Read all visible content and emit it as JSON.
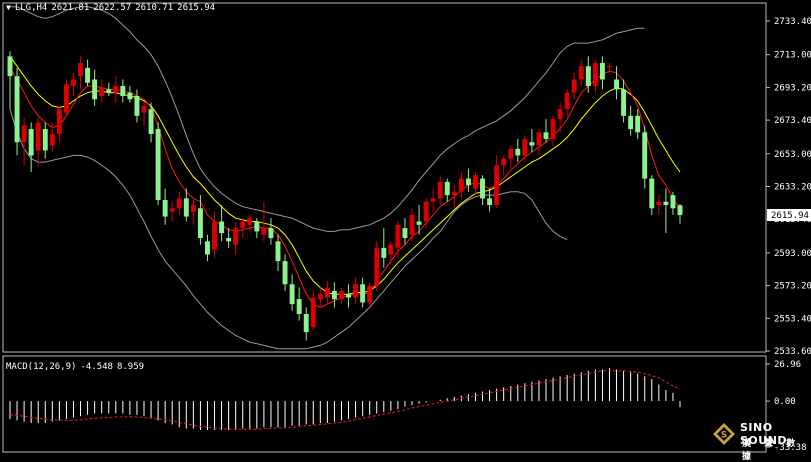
{
  "header": {
    "symbol": "LLG,H4",
    "open": "2621.81",
    "high": "2622.57",
    "low": "2610.71",
    "close": "2615.94"
  },
  "macd_header": {
    "label": "MACD(12,26,9)",
    "main": "-4.548",
    "signal": "8.959"
  },
  "logo": {
    "name": "SINO SOUND",
    "sub": "漢 聲 數 據"
  },
  "colors": {
    "bull": "#d80000",
    "bear": "#8ef28e",
    "ma_fast": "#ff1a1a",
    "ma_slow": "#ffff00",
    "bands": "#9a9a9a",
    "signal": "#e02020",
    "hist": "#ffffff",
    "frame": "#bbbbbb"
  },
  "chart_data": [
    {
      "type": "candlestick",
      "title": "LLG,H4",
      "price_ticks": [
        "2733.40",
        "2713.00",
        "2693.20",
        "2673.40",
        "2653.00",
        "2633.20",
        "2613.40",
        "2593.00",
        "2573.20",
        "2553.40",
        "2533.60"
      ],
      "current_price_label": "2615.94",
      "ylim": [
        2533.6,
        2733.4
      ],
      "candles": [
        [
          2712,
          2715,
          2680,
          2700
        ],
        [
          2700,
          2705,
          2652,
          2660
        ],
        [
          2660,
          2675,
          2646,
          2670
        ],
        [
          2668,
          2672,
          2642,
          2652
        ],
        [
          2655,
          2675,
          2645,
          2672
        ],
        [
          2668,
          2672,
          2650,
          2655
        ],
        [
          2658,
          2672,
          2654,
          2665
        ],
        [
          2665,
          2682,
          2660,
          2680
        ],
        [
          2678,
          2698,
          2676,
          2695
        ],
        [
          2694,
          2702,
          2688,
          2698
        ],
        [
          2700,
          2712,
          2692,
          2708
        ],
        [
          2705,
          2710,
          2694,
          2696
        ],
        [
          2698,
          2704,
          2682,
          2686
        ],
        [
          2688,
          2698,
          2684,
          2693
        ],
        [
          2692,
          2696,
          2688,
          2690
        ],
        [
          2690,
          2700,
          2684,
          2694
        ],
        [
          2694,
          2698,
          2684,
          2688
        ],
        [
          2690,
          2694,
          2684,
          2686
        ],
        [
          2688,
          2692,
          2672,
          2676
        ],
        [
          2678,
          2684,
          2670,
          2682
        ],
        [
          2680,
          2684,
          2660,
          2665
        ],
        [
          2668,
          2672,
          2622,
          2625
        ],
        [
          2625,
          2632,
          2610,
          2615
        ],
        [
          2618,
          2624,
          2612,
          2620
        ],
        [
          2620,
          2630,
          2616,
          2626
        ],
        [
          2626,
          2632,
          2612,
          2615
        ],
        [
          2618,
          2625,
          2610,
          2622
        ],
        [
          2620,
          2628,
          2598,
          2602
        ],
        [
          2600,
          2604,
          2588,
          2592
        ],
        [
          2595,
          2618,
          2590,
          2612
        ],
        [
          2612,
          2622,
          2600,
          2605
        ],
        [
          2602,
          2608,
          2596,
          2600
        ],
        [
          2598,
          2612,
          2592,
          2608
        ],
        [
          2608,
          2614,
          2602,
          2612
        ],
        [
          2610,
          2616,
          2606,
          2614
        ],
        [
          2612,
          2614,
          2602,
          2606
        ],
        [
          2604,
          2624,
          2600,
          2608
        ],
        [
          2608,
          2614,
          2598,
          2602
        ],
        [
          2600,
          2604,
          2582,
          2588
        ],
        [
          2588,
          2592,
          2570,
          2574
        ],
        [
          2574,
          2580,
          2558,
          2562
        ],
        [
          2565,
          2572,
          2552,
          2556
        ],
        [
          2556,
          2560,
          2540,
          2545
        ],
        [
          2548,
          2570,
          2546,
          2566
        ],
        [
          2565,
          2572,
          2560,
          2568
        ],
        [
          2566,
          2576,
          2562,
          2572
        ],
        [
          2570,
          2575,
          2560,
          2565
        ],
        [
          2565,
          2572,
          2562,
          2570
        ],
        [
          2568,
          2574,
          2560,
          2566
        ],
        [
          2566,
          2578,
          2562,
          2574
        ],
        [
          2574,
          2578,
          2560,
          2563
        ],
        [
          2563,
          2575,
          2560,
          2573
        ],
        [
          2573,
          2600,
          2570,
          2596
        ],
        [
          2596,
          2608,
          2584,
          2590
        ],
        [
          2592,
          2600,
          2586,
          2598
        ],
        [
          2596,
          2612,
          2590,
          2610
        ],
        [
          2608,
          2614,
          2598,
          2602
        ],
        [
          2604,
          2620,
          2600,
          2616
        ],
        [
          2612,
          2622,
          2604,
          2610
        ],
        [
          2612,
          2626,
          2608,
          2624
        ],
        [
          2624,
          2632,
          2618,
          2626
        ],
        [
          2626,
          2640,
          2622,
          2636
        ],
        [
          2636,
          2638,
          2624,
          2628
        ],
        [
          2628,
          2634,
          2620,
          2630
        ],
        [
          2630,
          2642,
          2626,
          2638
        ],
        [
          2638,
          2644,
          2630,
          2634
        ],
        [
          2632,
          2642,
          2628,
          2640
        ],
        [
          2638,
          2640,
          2622,
          2626
        ],
        [
          2626,
          2632,
          2618,
          2622
        ],
        [
          2622,
          2652,
          2620,
          2646
        ],
        [
          2646,
          2652,
          2640,
          2650
        ],
        [
          2650,
          2658,
          2644,
          2656
        ],
        [
          2656,
          2662,
          2648,
          2652
        ],
        [
          2652,
          2664,
          2648,
          2662
        ],
        [
          2660,
          2668,
          2654,
          2658
        ],
        [
          2658,
          2668,
          2652,
          2666
        ],
        [
          2666,
          2674,
          2660,
          2662
        ],
        [
          2662,
          2676,
          2658,
          2674
        ],
        [
          2674,
          2684,
          2666,
          2680
        ],
        [
          2680,
          2692,
          2676,
          2690
        ],
        [
          2690,
          2702,
          2686,
          2698
        ],
        [
          2698,
          2710,
          2694,
          2706
        ],
        [
          2706,
          2712,
          2690,
          2694
        ],
        [
          2694,
          2710,
          2690,
          2708
        ],
        [
          2708,
          2712,
          2692,
          2698
        ],
        [
          2706,
          2708,
          2702,
          2706
        ],
        [
          2698,
          2706,
          2686,
          2692
        ],
        [
          2692,
          2698,
          2672,
          2676
        ],
        [
          2676,
          2682,
          2664,
          2668
        ],
        [
          2676,
          2680,
          2662,
          2666
        ],
        [
          2666,
          2670,
          2632,
          2638
        ],
        [
          2638,
          2640,
          2616,
          2620
        ],
        [
          2622,
          2628,
          2616,
          2624
        ],
        [
          2624,
          2632,
          2605,
          2622
        ],
        [
          2628,
          2630,
          2616,
          2620
        ],
        [
          2621.81,
          2622.57,
          2610.71,
          2615.94
        ]
      ],
      "ma_fast": [
        2705,
        2698,
        2690,
        2682,
        2676,
        2672,
        2669,
        2670,
        2676,
        2683,
        2690,
        2694,
        2694,
        2693,
        2692,
        2692,
        2691,
        2690,
        2688,
        2686,
        2681,
        2670,
        2656,
        2644,
        2636,
        2630,
        2626,
        2624,
        2616,
        2612,
        2610,
        2607,
        2606,
        2607,
        2608,
        2609,
        2608,
        2608,
        2604,
        2597,
        2588,
        2578,
        2568,
        2562,
        2560,
        2562,
        2564,
        2566,
        2567,
        2568,
        2568,
        2569,
        2576,
        2582,
        2588,
        2594,
        2598,
        2603,
        2606,
        2611,
        2616,
        2621,
        2624,
        2627,
        2631,
        2634,
        2636,
        2634,
        2632,
        2634,
        2638,
        2643,
        2647,
        2651,
        2654,
        2657,
        2660,
        2664,
        2668,
        2674,
        2682,
        2690,
        2694,
        2698,
        2701,
        2703,
        2702,
        2697,
        2690,
        2682,
        2668,
        2652,
        2640,
        2634,
        2626,
        2620
      ],
      "ma_slow": [
        2712,
        2706,
        2700,
        2694,
        2689,
        2685,
        2682,
        2681,
        2682,
        2685,
        2688,
        2690,
        2691,
        2691,
        2690,
        2690,
        2689,
        2688,
        2687,
        2685,
        2682,
        2676,
        2668,
        2660,
        2652,
        2645,
        2639,
        2635,
        2630,
        2625,
        2621,
        2617,
        2614,
        2613,
        2612,
        2612,
        2611,
        2610,
        2608,
        2604,
        2598,
        2590,
        2582,
        2576,
        2572,
        2569,
        2568,
        2568,
        2568,
        2569,
        2569,
        2570,
        2573,
        2577,
        2582,
        2587,
        2591,
        2595,
        2599,
        2603,
        2607,
        2611,
        2615,
        2619,
        2623,
        2626,
        2629,
        2630,
        2631,
        2633,
        2636,
        2639,
        2642,
        2645,
        2648,
        2650,
        2653,
        2656,
        2659,
        2663,
        2668,
        2674,
        2679,
        2684,
        2688,
        2691,
        2693,
        2692,
        2689,
        2685,
        2678,
        2670,
        2662,
        2655,
        2648,
        2642
      ],
      "band_upper": [
        2742,
        2742,
        2740,
        2738,
        2736,
        2735,
        2736,
        2738,
        2740,
        2741,
        2742,
        2742,
        2741,
        2740,
        2738,
        2735,
        2731,
        2727,
        2722,
        2718,
        2713,
        2706,
        2697,
        2687,
        2676,
        2664,
        2653,
        2644,
        2638,
        2633,
        2629,
        2626,
        2623,
        2621,
        2620,
        2619,
        2618,
        2617,
        2616,
        2615,
        2614,
        2612,
        2610,
        2608,
        2607,
        2606,
        2606,
        2607,
        2607,
        2608,
        2609,
        2610,
        2612,
        2614,
        2617,
        2621,
        2626,
        2631,
        2637,
        2642,
        2647,
        2652,
        2656,
        2659,
        2662,
        2664,
        2667,
        2669,
        2671,
        2673,
        2676,
        2679,
        2683,
        2687,
        2692,
        2697,
        2702,
        2708,
        2714,
        2718,
        2720,
        2720,
        2720,
        2721,
        2722,
        2724,
        2726,
        2727,
        2728,
        2729,
        2729
      ],
      "band_lower": [
        2680,
        2666,
        2656,
        2650,
        2648,
        2648,
        2649,
        2650,
        2651,
        2652,
        2652,
        2651,
        2649,
        2646,
        2643,
        2639,
        2634,
        2628,
        2620,
        2612,
        2603,
        2595,
        2588,
        2583,
        2578,
        2573,
        2567,
        2562,
        2557,
        2553,
        2549,
        2546,
        2543,
        2541,
        2539,
        2538,
        2537,
        2536,
        2535,
        2535,
        2535,
        2535,
        2535,
        2536,
        2537,
        2539,
        2542,
        2545,
        2548,
        2552,
        2556,
        2560,
        2565,
        2570,
        2575,
        2580,
        2585,
        2589,
        2593,
        2597,
        2602,
        2606,
        2612,
        2618,
        2622,
        2625,
        2627,
        2628,
        2628,
        2628,
        2629,
        2630,
        2630,
        2629,
        2625,
        2618,
        2611,
        2606,
        2603,
        2601
      ]
    },
    {
      "type": "bar",
      "title": "MACD(12,26,9)",
      "main_value": -4.548,
      "signal_value": 8.959,
      "y_ticks": [
        "26.96",
        "0.00",
        "-33.38"
      ],
      "ylim": [
        -33.38,
        26.96
      ],
      "histogram": [
        -13,
        -14,
        -15,
        -16,
        -16,
        -16,
        -15,
        -14,
        -13,
        -12,
        -11,
        -10,
        -9,
        -9,
        -9,
        -9,
        -9,
        -10,
        -10,
        -11,
        -12,
        -14,
        -16,
        -17,
        -19,
        -20,
        -20,
        -21,
        -21,
        -21,
        -21,
        -21,
        -21,
        -20,
        -20,
        -20,
        -19,
        -19,
        -19,
        -19,
        -18,
        -18,
        -17,
        -17,
        -16,
        -16,
        -15,
        -14,
        -13,
        -12,
        -11,
        -10,
        -9,
        -8,
        -7,
        -6,
        -4,
        -3,
        -2,
        -1,
        0,
        1,
        2,
        3,
        4,
        5,
        6,
        7,
        8,
        9,
        10,
        11,
        12,
        13,
        14,
        15,
        16,
        17,
        18,
        19,
        20,
        21,
        22,
        23,
        23,
        24,
        23,
        22,
        21,
        20,
        18,
        16,
        12,
        8,
        6,
        -4.5
      ],
      "signal": [
        -10,
        -10.5,
        -11,
        -12,
        -12.5,
        -13,
        -13.5,
        -14,
        -14,
        -14,
        -13.5,
        -13,
        -12.5,
        -12,
        -12,
        -11.5,
        -11.5,
        -11.5,
        -11.5,
        -12,
        -12.5,
        -13,
        -13.5,
        -14.5,
        -15.5,
        -16.5,
        -17.5,
        -18.5,
        -19,
        -19.5,
        -20,
        -20.5,
        -20.5,
        -20.5,
        -20.5,
        -20.5,
        -20,
        -20,
        -19.5,
        -19.5,
        -19,
        -18.5,
        -18,
        -17.5,
        -17,
        -16.5,
        -16,
        -15.5,
        -14.5,
        -13.5,
        -12.5,
        -11.5,
        -10.5,
        -9.5,
        -8.5,
        -7.5,
        -6.5,
        -5,
        -4,
        -3,
        -2,
        -1,
        0,
        1,
        2,
        3,
        4,
        5,
        6,
        7,
        8,
        9,
        10,
        11,
        12,
        13,
        14,
        15,
        16,
        17,
        18,
        19,
        20,
        21,
        22,
        22,
        22,
        22,
        21.5,
        21,
        20,
        18.5,
        17,
        14,
        11,
        9
      ]
    }
  ]
}
